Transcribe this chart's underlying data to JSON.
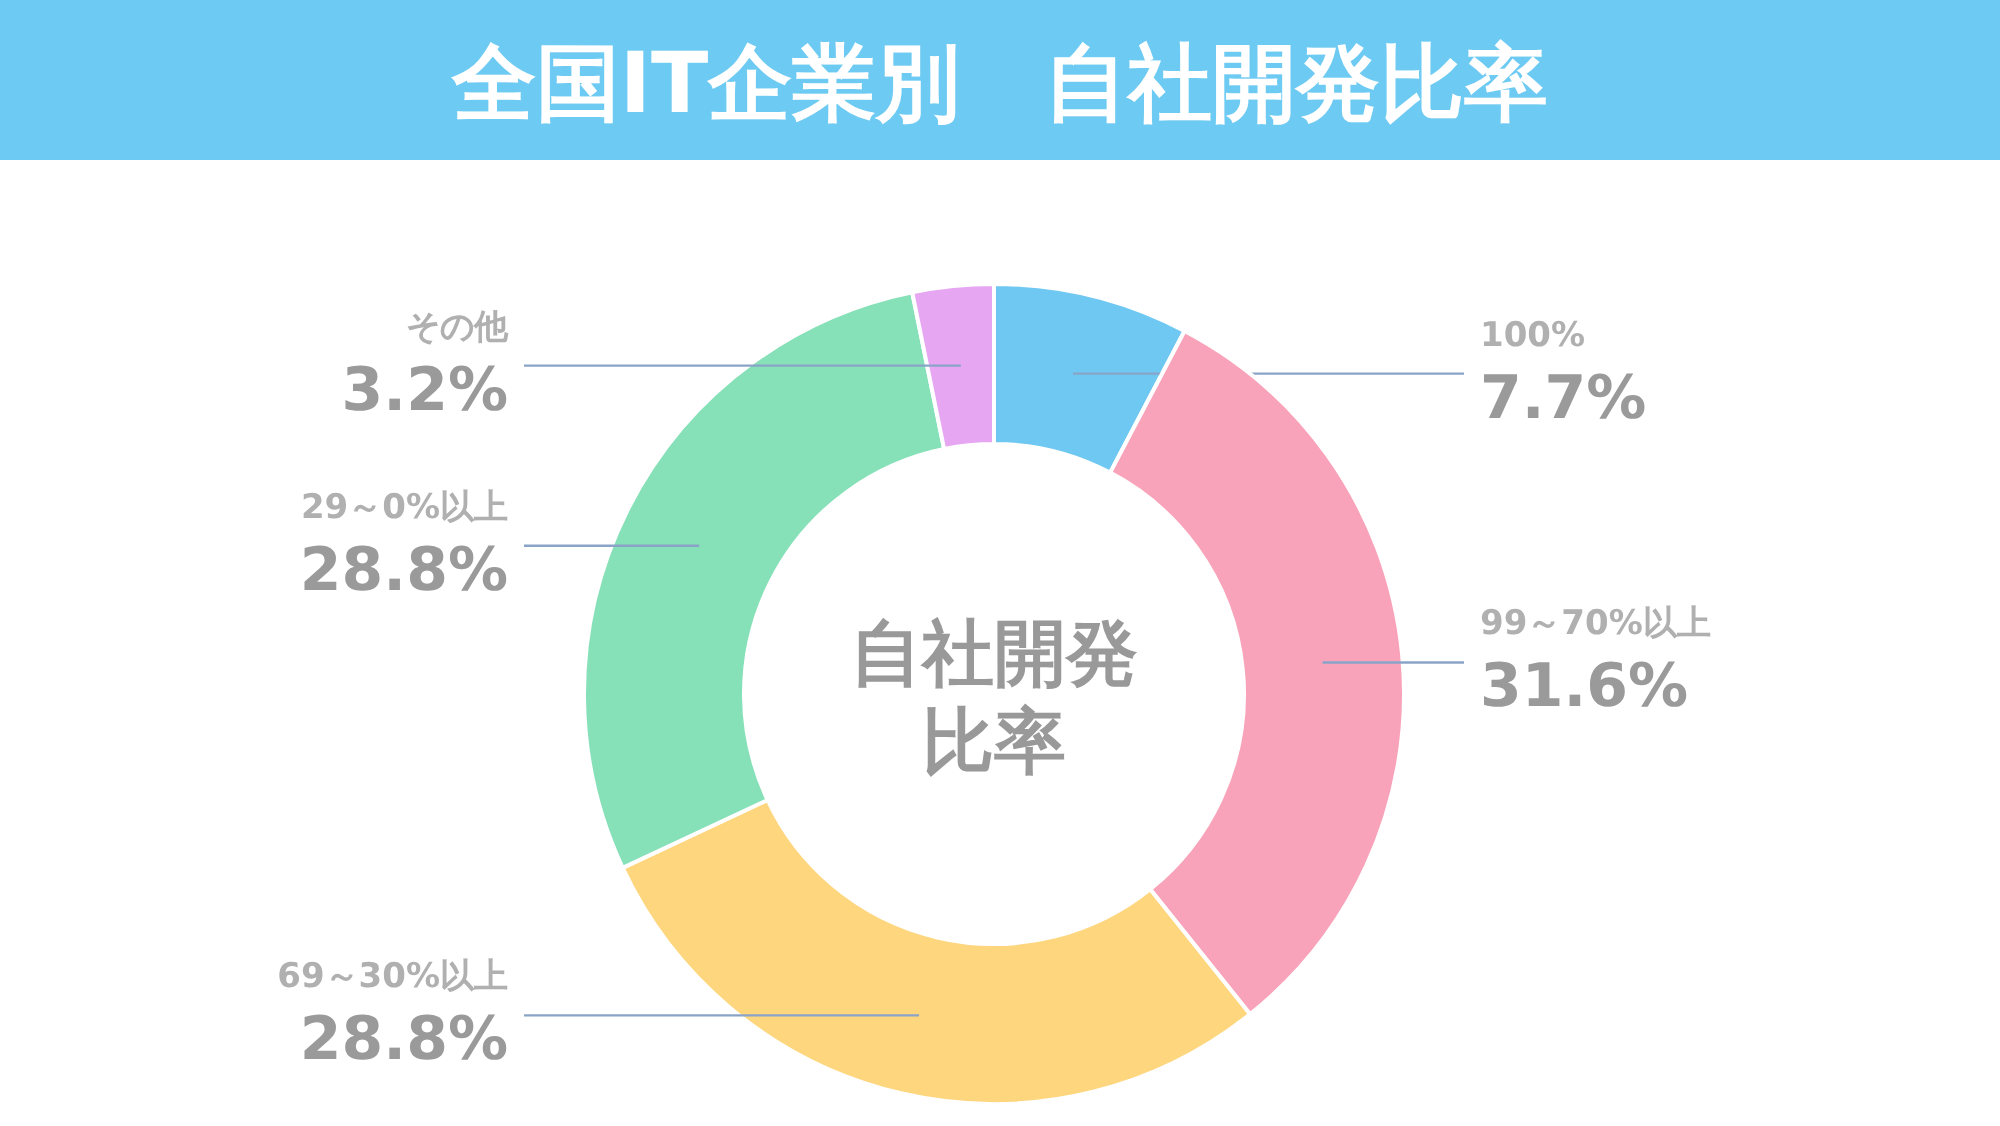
{
  "chart_data": {
    "type": "donut",
    "title": "全国IT企業別　自社開発比率",
    "categories": [
      "100%",
      "99～70%以上",
      "69～30%以上",
      "29～0%以上",
      "その他"
    ],
    "values": [
      7.7,
      31.6,
      28.8,
      28.8,
      3.2
    ],
    "value_labels": [
      "7.7%",
      "31.6%",
      "28.8%",
      "28.8%",
      "3.2%"
    ],
    "colors": [
      "#6ec8f2",
      "#f8a3ba",
      "#fdd67e",
      "#86e0b8",
      "#e6a6f2"
    ],
    "annotations": [
      "自社開発比率"
    ]
  }
}
